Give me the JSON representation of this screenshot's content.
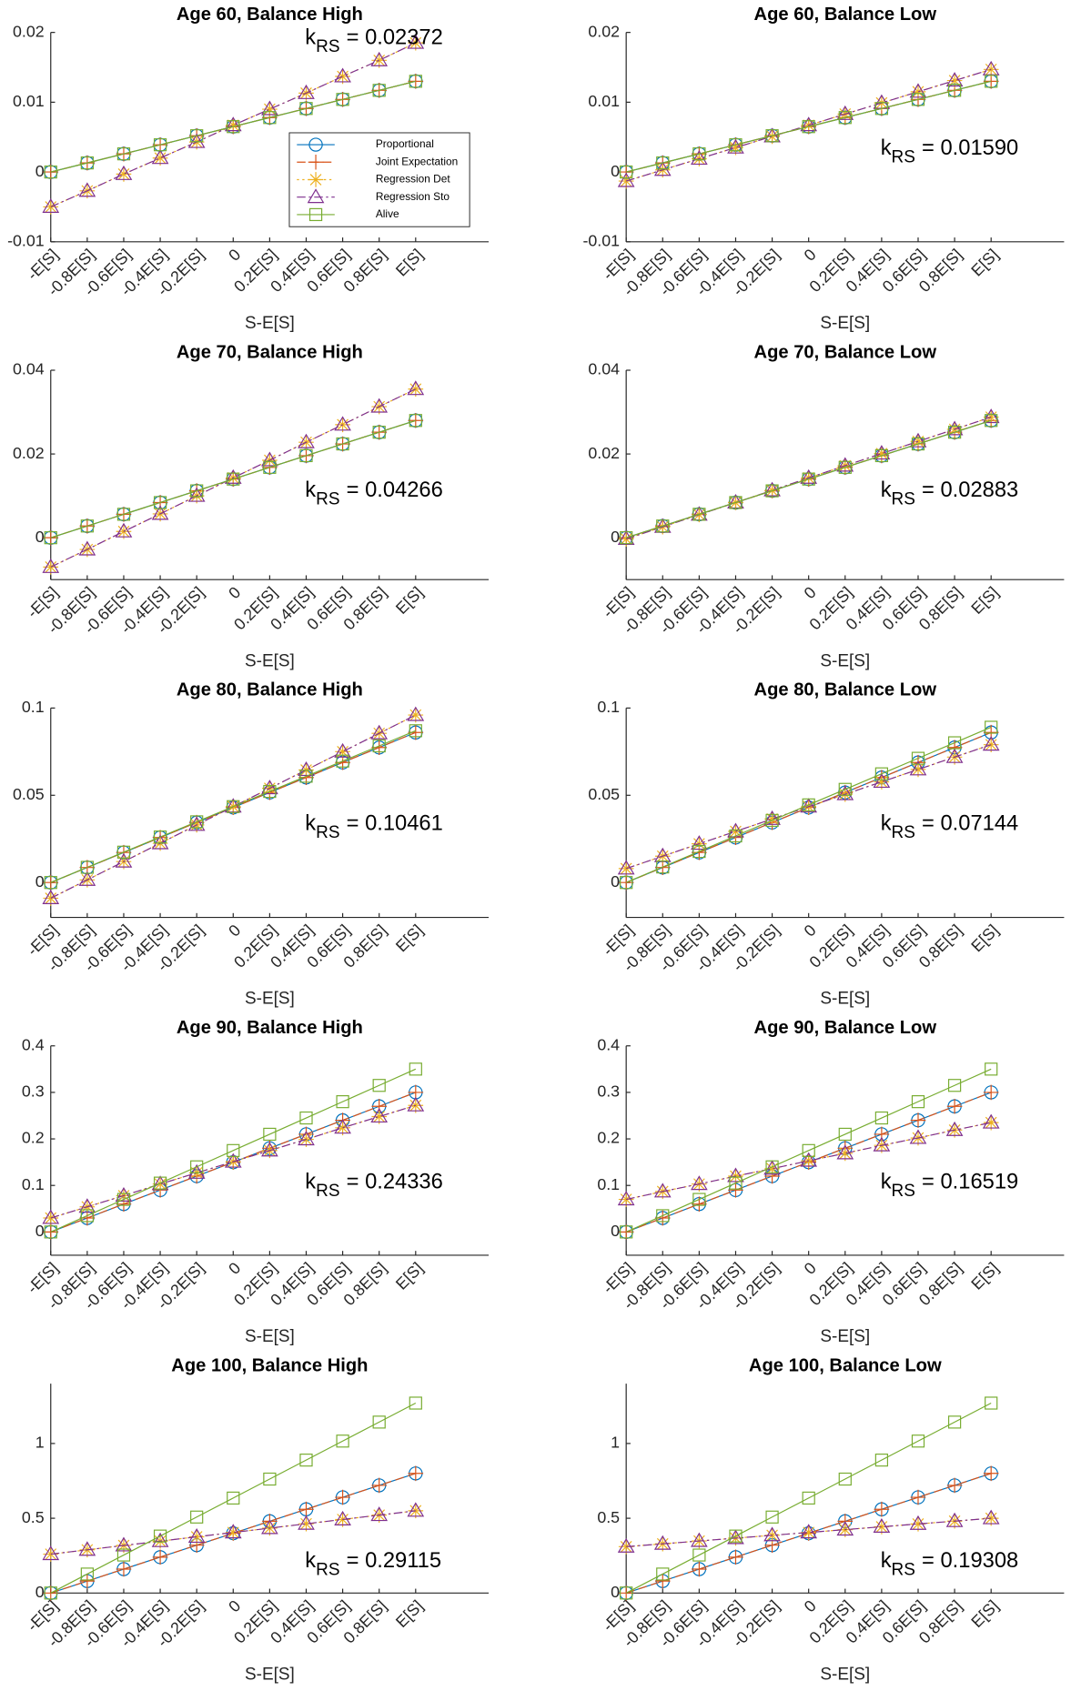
{
  "chart_data": [
    {
      "type": "line",
      "title": "Age 60, Balance High",
      "x_label": "S-E[S]",
      "categories": [
        "-E[S]",
        "-0.8E[S]",
        "-0.6E[S]",
        "-0.4E[S]",
        "-0.2E[S]",
        "0",
        "0.2E[S]",
        "0.4E[S]",
        "0.6E[S]",
        "0.8E[S]",
        "E[S]"
      ],
      "ylim": [
        -0.01,
        0.02
      ],
      "yticks": [
        -0.01,
        0,
        0.01,
        0.02
      ],
      "legend": "east",
      "annotation": {
        "symbol": "k",
        "subscript": "RS",
        "text": "= 0.02372"
      },
      "series": [
        {
          "name": "Proportional",
          "color": "#0072BD",
          "marker": "o",
          "line_style": "-",
          "values": [
            0,
            0.0013,
            0.0026,
            0.0039,
            0.0052,
            0.0065,
            0.0078,
            0.0091,
            0.0104,
            0.0117,
            0.013
          ]
        },
        {
          "name": "Joint Expectation",
          "color": "#D95319",
          "marker": "+",
          "line_style": "--",
          "values": [
            0,
            0.0013,
            0.0026,
            0.0039,
            0.0052,
            0.0065,
            0.0078,
            0.0091,
            0.0104,
            0.0117,
            0.013
          ]
        },
        {
          "name": "Regression Det",
          "color": "#EDB120",
          "marker": "*",
          "line_style": ":",
          "values": [
            -0.005,
            -0.0027,
            -0.0003,
            0.002,
            0.0043,
            0.0067,
            0.009,
            0.0113,
            0.0137,
            0.016,
            0.0185
          ]
        },
        {
          "name": "Regression Sto",
          "color": "#7E2F8E",
          "marker": "^",
          "line_style": "-.",
          "values": [
            -0.005,
            -0.0027,
            -0.0003,
            0.002,
            0.0043,
            0.0067,
            0.009,
            0.0113,
            0.0137,
            0.016,
            0.0185
          ]
        },
        {
          "name": "Alive",
          "color": "#77AC30",
          "marker": "s",
          "line_style": "-",
          "values": [
            0,
            0.0013,
            0.0026,
            0.0039,
            0.0052,
            0.0065,
            0.0078,
            0.0091,
            0.0104,
            0.0117,
            0.013
          ]
        }
      ]
    },
    {
      "type": "line",
      "title": "Age 60, Balance Low",
      "x_label": "S-E[S]",
      "categories": [
        "-E[S]",
        "-0.8E[S]",
        "-0.6E[S]",
        "-0.4E[S]",
        "-0.2E[S]",
        "0",
        "0.2E[S]",
        "0.4E[S]",
        "0.6E[S]",
        "0.8E[S]",
        "E[S]"
      ],
      "ylim": [
        -0.01,
        0.02
      ],
      "yticks": [
        -0.01,
        0,
        0.01,
        0.02
      ],
      "annotation": {
        "symbol": "k",
        "subscript": "RS",
        "text": "= 0.01590"
      },
      "series": [
        {
          "values": [
            0,
            0.0013,
            0.0026,
            0.0039,
            0.0052,
            0.0065,
            0.0078,
            0.0091,
            0.0104,
            0.0117,
            0.013
          ]
        },
        {
          "values": [
            0,
            0.0013,
            0.0026,
            0.0039,
            0.0052,
            0.0065,
            0.0078,
            0.0091,
            0.0104,
            0.0117,
            0.013
          ]
        },
        {
          "values": [
            -0.0013,
            0.0003,
            0.0019,
            0.0035,
            0.0051,
            0.0067,
            0.0083,
            0.0099,
            0.0115,
            0.0131,
            0.0147
          ]
        },
        {
          "values": [
            -0.0013,
            0.0003,
            0.0019,
            0.0035,
            0.0051,
            0.0067,
            0.0083,
            0.0099,
            0.0115,
            0.0131,
            0.0147
          ]
        },
        {
          "values": [
            0,
            0.0013,
            0.0026,
            0.0039,
            0.0052,
            0.0065,
            0.0078,
            0.0091,
            0.0104,
            0.0117,
            0.013
          ]
        }
      ]
    },
    {
      "type": "line",
      "title": "Age 70, Balance High",
      "x_label": "S-E[S]",
      "categories": [
        "-E[S]",
        "-0.8E[S]",
        "-0.6E[S]",
        "-0.4E[S]",
        "-0.2E[S]",
        "0",
        "0.2E[S]",
        "0.4E[S]",
        "0.6E[S]",
        "0.8E[S]",
        "E[S]"
      ],
      "ylim": [
        -0.01,
        0.04
      ],
      "yticks": [
        0,
        0.02,
        0.04
      ],
      "annotation": {
        "symbol": "k",
        "subscript": "RS",
        "text": "= 0.04266"
      },
      "series": [
        {
          "values": [
            0,
            0.0028,
            0.0056,
            0.0084,
            0.0112,
            0.014,
            0.0168,
            0.0196,
            0.0224,
            0.0252,
            0.028
          ]
        },
        {
          "values": [
            0,
            0.0028,
            0.0056,
            0.0084,
            0.0112,
            0.014,
            0.0168,
            0.0196,
            0.0224,
            0.0252,
            0.028
          ]
        },
        {
          "values": [
            -0.007,
            -0.0028,
            0.0015,
            0.0057,
            0.01,
            0.0143,
            0.0185,
            0.0228,
            0.027,
            0.0313,
            0.0355
          ]
        },
        {
          "values": [
            -0.007,
            -0.0028,
            0.0015,
            0.0057,
            0.01,
            0.0143,
            0.0185,
            0.0228,
            0.027,
            0.0313,
            0.0355
          ]
        },
        {
          "values": [
            0,
            0.0028,
            0.0056,
            0.0084,
            0.0112,
            0.014,
            0.0168,
            0.0196,
            0.0224,
            0.0252,
            0.028
          ]
        }
      ]
    },
    {
      "type": "line",
      "title": "Age 70, Balance Low",
      "x_label": "S-E[S]",
      "categories": [
        "-E[S]",
        "-0.8E[S]",
        "-0.6E[S]",
        "-0.4E[S]",
        "-0.2E[S]",
        "0",
        "0.2E[S]",
        "0.4E[S]",
        "0.6E[S]",
        "0.8E[S]",
        "E[S]"
      ],
      "ylim": [
        -0.01,
        0.04
      ],
      "yticks": [
        0,
        0.02,
        0.04
      ],
      "annotation": {
        "symbol": "k",
        "subscript": "RS",
        "text": "= 0.02883"
      },
      "series": [
        {
          "values": [
            0,
            0.0028,
            0.0056,
            0.0084,
            0.0112,
            0.014,
            0.0168,
            0.0196,
            0.0224,
            0.0252,
            0.028
          ]
        },
        {
          "values": [
            0,
            0.0028,
            0.0056,
            0.0084,
            0.0112,
            0.014,
            0.0168,
            0.0196,
            0.0224,
            0.0252,
            0.028
          ]
        },
        {
          "values": [
            -0.0003,
            0.0026,
            0.0055,
            0.0084,
            0.0113,
            0.0143,
            0.0172,
            0.0201,
            0.023,
            0.0259,
            0.0288
          ]
        },
        {
          "values": [
            -0.0003,
            0.0026,
            0.0055,
            0.0084,
            0.0113,
            0.0143,
            0.0172,
            0.0201,
            0.023,
            0.0259,
            0.0288
          ]
        },
        {
          "values": [
            0,
            0.0028,
            0.0056,
            0.0084,
            0.0112,
            0.014,
            0.0168,
            0.0196,
            0.0224,
            0.0252,
            0.028
          ]
        }
      ]
    },
    {
      "type": "line",
      "title": "Age 80, Balance High",
      "x_label": "S-E[S]",
      "categories": [
        "-E[S]",
        "-0.8E[S]",
        "-0.6E[S]",
        "-0.4E[S]",
        "-0.2E[S]",
        "0",
        "0.2E[S]",
        "0.4E[S]",
        "0.6E[S]",
        "0.8E[S]",
        "E[S]"
      ],
      "ylim": [
        -0.02,
        0.1
      ],
      "yticks": [
        0,
        0.05,
        0.1
      ],
      "annotation": {
        "symbol": "k",
        "subscript": "RS",
        "text": "= 0.10461"
      },
      "series": [
        {
          "values": [
            0,
            0.0086,
            0.0172,
            0.0258,
            0.0344,
            0.043,
            0.0516,
            0.0602,
            0.0688,
            0.0774,
            0.086
          ]
        },
        {
          "values": [
            0,
            0.0086,
            0.0172,
            0.0258,
            0.0344,
            0.043,
            0.0516,
            0.0602,
            0.0688,
            0.0774,
            0.086
          ]
        },
        {
          "values": [
            -0.009,
            0.0015,
            0.012,
            0.0225,
            0.033,
            0.0435,
            0.054,
            0.0645,
            0.075,
            0.0855,
            0.096
          ]
        },
        {
          "values": [
            -0.009,
            0.0015,
            0.012,
            0.0225,
            0.033,
            0.0435,
            0.054,
            0.0645,
            0.075,
            0.0855,
            0.096
          ]
        },
        {
          "values": [
            0,
            0.0087,
            0.0174,
            0.0261,
            0.0348,
            0.0435,
            0.0522,
            0.0609,
            0.0696,
            0.0783,
            0.087
          ]
        }
      ]
    },
    {
      "type": "line",
      "title": "Age 80, Balance Low",
      "x_label": "S-E[S]",
      "categories": [
        "-E[S]",
        "-0.8E[S]",
        "-0.6E[S]",
        "-0.4E[S]",
        "-0.2E[S]",
        "0",
        "0.2E[S]",
        "0.4E[S]",
        "0.6E[S]",
        "0.8E[S]",
        "E[S]"
      ],
      "ylim": [
        -0.02,
        0.1
      ],
      "yticks": [
        0,
        0.05,
        0.1
      ],
      "annotation": {
        "symbol": "k",
        "subscript": "RS",
        "text": "= 0.07144"
      },
      "series": [
        {
          "values": [
            0,
            0.0086,
            0.0172,
            0.0258,
            0.0344,
            0.043,
            0.0516,
            0.0602,
            0.0688,
            0.0774,
            0.086
          ]
        },
        {
          "values": [
            0,
            0.0086,
            0.0172,
            0.0258,
            0.0344,
            0.043,
            0.0516,
            0.0602,
            0.0688,
            0.0774,
            0.086
          ]
        },
        {
          "values": [
            0.008,
            0.0151,
            0.0222,
            0.0293,
            0.0364,
            0.0435,
            0.0506,
            0.0577,
            0.0648,
            0.0719,
            0.079
          ]
        },
        {
          "values": [
            0.008,
            0.0151,
            0.0222,
            0.0293,
            0.0364,
            0.0435,
            0.0506,
            0.0577,
            0.0648,
            0.0719,
            0.079
          ]
        },
        {
          "values": [
            0,
            0.0089,
            0.0178,
            0.0267,
            0.0356,
            0.0445,
            0.0534,
            0.0623,
            0.0712,
            0.0801,
            0.089
          ]
        }
      ]
    },
    {
      "type": "line",
      "title": "Age 90, Balance High",
      "x_label": "S-E[S]",
      "categories": [
        "-E[S]",
        "-0.8E[S]",
        "-0.6E[S]",
        "-0.4E[S]",
        "-0.2E[S]",
        "0",
        "0.2E[S]",
        "0.4E[S]",
        "0.6E[S]",
        "0.8E[S]",
        "E[S]"
      ],
      "ylim": [
        -0.05,
        0.4
      ],
      "yticks": [
        0,
        0.1,
        0.2,
        0.3,
        0.4
      ],
      "annotation": {
        "symbol": "k",
        "subscript": "RS",
        "text": "= 0.24336"
      },
      "series": [
        {
          "values": [
            0,
            0.03,
            0.06,
            0.09,
            0.12,
            0.15,
            0.18,
            0.21,
            0.24,
            0.27,
            0.3
          ]
        },
        {
          "values": [
            0,
            0.03,
            0.06,
            0.09,
            0.12,
            0.15,
            0.18,
            0.21,
            0.24,
            0.27,
            0.3
          ]
        },
        {
          "values": [
            0.03,
            0.054,
            0.078,
            0.103,
            0.127,
            0.151,
            0.175,
            0.199,
            0.224,
            0.248,
            0.272
          ]
        },
        {
          "values": [
            0.03,
            0.054,
            0.078,
            0.103,
            0.127,
            0.151,
            0.175,
            0.199,
            0.224,
            0.248,
            0.272
          ]
        },
        {
          "values": [
            0,
            0.035,
            0.07,
            0.105,
            0.14,
            0.175,
            0.21,
            0.245,
            0.28,
            0.315,
            0.35
          ]
        }
      ]
    },
    {
      "type": "line",
      "title": "Age 90, Balance Low",
      "x_label": "S-E[S]",
      "categories": [
        "-E[S]",
        "-0.8E[S]",
        "-0.6E[S]",
        "-0.4E[S]",
        "-0.2E[S]",
        "0",
        "0.2E[S]",
        "0.4E[S]",
        "0.6E[S]",
        "0.8E[S]",
        "E[S]"
      ],
      "ylim": [
        -0.05,
        0.4
      ],
      "yticks": [
        0,
        0.1,
        0.2,
        0.3,
        0.4
      ],
      "annotation": {
        "symbol": "k",
        "subscript": "RS",
        "text": "= 0.16519"
      },
      "series": [
        {
          "values": [
            0,
            0.03,
            0.06,
            0.09,
            0.12,
            0.15,
            0.18,
            0.21,
            0.24,
            0.27,
            0.3
          ]
        },
        {
          "values": [
            0,
            0.03,
            0.06,
            0.09,
            0.12,
            0.15,
            0.18,
            0.21,
            0.24,
            0.27,
            0.3
          ]
        },
        {
          "values": [
            0.07,
            0.087,
            0.103,
            0.12,
            0.136,
            0.153,
            0.169,
            0.186,
            0.202,
            0.219,
            0.235
          ]
        },
        {
          "values": [
            0.07,
            0.087,
            0.103,
            0.12,
            0.136,
            0.153,
            0.169,
            0.186,
            0.202,
            0.219,
            0.235
          ]
        },
        {
          "values": [
            0,
            0.035,
            0.07,
            0.105,
            0.14,
            0.175,
            0.21,
            0.245,
            0.28,
            0.315,
            0.35
          ]
        }
      ]
    },
    {
      "type": "line",
      "title": "Age 100, Balance High",
      "x_label": "S-E[S]",
      "categories": [
        "-E[S]",
        "-0.8E[S]",
        "-0.6E[S]",
        "-0.4E[S]",
        "-0.2E[S]",
        "0",
        "0.2E[S]",
        "0.4E[S]",
        "0.6E[S]",
        "0.8E[S]",
        "E[S]"
      ],
      "ylim": [
        0,
        1.4
      ],
      "yticks": [
        0,
        0.5,
        1
      ],
      "annotation": {
        "symbol": "k",
        "subscript": "RS",
        "text": "= 0.29115"
      },
      "series": [
        {
          "values": [
            0,
            0.08,
            0.16,
            0.24,
            0.32,
            0.4,
            0.48,
            0.56,
            0.64,
            0.72,
            0.8
          ]
        },
        {
          "values": [
            0,
            0.08,
            0.16,
            0.24,
            0.32,
            0.4,
            0.48,
            0.56,
            0.64,
            0.72,
            0.8
          ]
        },
        {
          "values": [
            0.26,
            0.289,
            0.318,
            0.347,
            0.376,
            0.405,
            0.434,
            0.463,
            0.492,
            0.521,
            0.55
          ]
        },
        {
          "values": [
            0.26,
            0.289,
            0.318,
            0.347,
            0.376,
            0.405,
            0.434,
            0.463,
            0.492,
            0.521,
            0.55
          ]
        },
        {
          "values": [
            0,
            0.127,
            0.254,
            0.381,
            0.508,
            0.635,
            0.762,
            0.889,
            1.016,
            1.143,
            1.27
          ]
        }
      ]
    },
    {
      "type": "line",
      "title": "Age 100, Balance Low",
      "x_label": "S-E[S]",
      "categories": [
        "-E[S]",
        "-0.8E[S]",
        "-0.6E[S]",
        "-0.4E[S]",
        "-0.2E[S]",
        "0",
        "0.2E[S]",
        "0.4E[S]",
        "0.6E[S]",
        "0.8E[S]",
        "E[S]"
      ],
      "ylim": [
        0,
        1.4
      ],
      "yticks": [
        0,
        0.5,
        1
      ],
      "annotation": {
        "symbol": "k",
        "subscript": "RS",
        "text": "= 0.19308"
      },
      "series": [
        {
          "values": [
            0,
            0.08,
            0.16,
            0.24,
            0.32,
            0.4,
            0.48,
            0.56,
            0.64,
            0.72,
            0.8
          ]
        },
        {
          "values": [
            0,
            0.08,
            0.16,
            0.24,
            0.32,
            0.4,
            0.48,
            0.56,
            0.64,
            0.72,
            0.8
          ]
        },
        {
          "values": [
            0.31,
            0.329,
            0.348,
            0.367,
            0.386,
            0.405,
            0.424,
            0.443,
            0.462,
            0.481,
            0.5
          ]
        },
        {
          "values": [
            0.31,
            0.329,
            0.348,
            0.367,
            0.386,
            0.405,
            0.424,
            0.443,
            0.462,
            0.481,
            0.5
          ]
        },
        {
          "values": [
            0,
            0.127,
            0.254,
            0.381,
            0.508,
            0.635,
            0.762,
            0.889,
            1.016,
            1.143,
            1.27
          ]
        }
      ]
    }
  ]
}
